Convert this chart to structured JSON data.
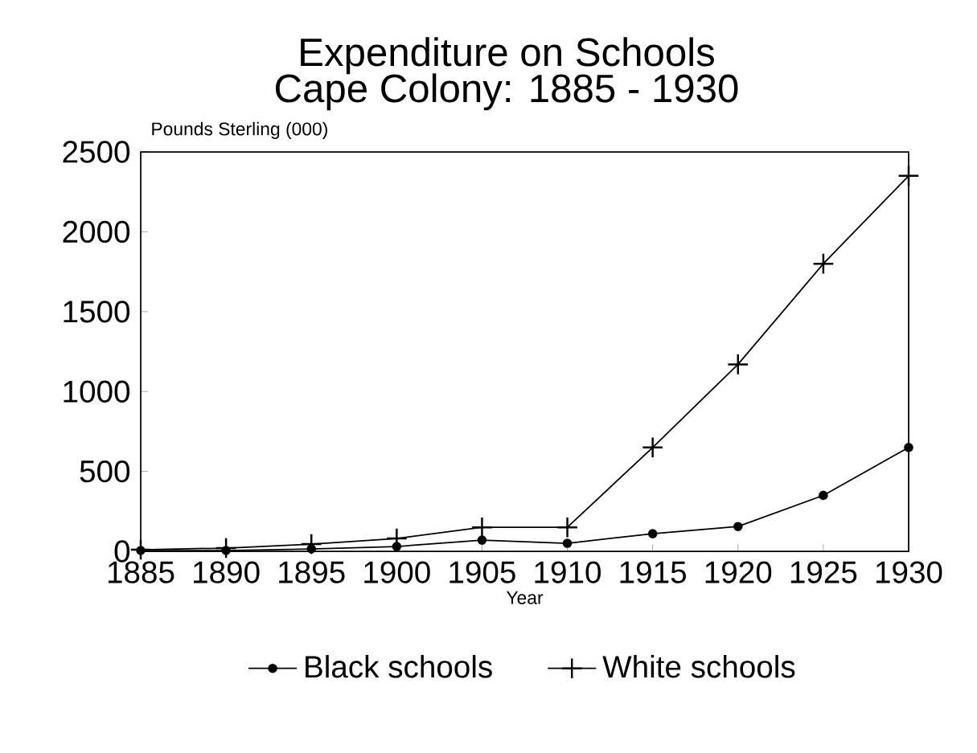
{
  "chart_data": {
    "type": "line",
    "title": "Expenditure on Schools",
    "subtitle": "Cape Colony: 1885 - 1930",
    "xlabel": "Year",
    "ylabel": "Pounds Sterling (000)",
    "x": [
      1885,
      1890,
      1895,
      1900,
      1905,
      1910,
      1915,
      1920,
      1925,
      1930
    ],
    "series": [
      {
        "name": "Black schools",
        "color": "#000000",
        "marker": "circle",
        "values": [
          5,
          5,
          15,
          30,
          70,
          50,
          110,
          155,
          350,
          650
        ]
      },
      {
        "name": "White schools",
        "color": "#000000",
        "marker": "cross",
        "values": [
          10,
          20,
          45,
          80,
          150,
          150,
          650,
          1170,
          1800,
          2350
        ]
      }
    ],
    "xlim": [
      1885,
      1930
    ],
    "ylim": [
      0,
      2500
    ],
    "xticks": [
      1885,
      1890,
      1895,
      1900,
      1905,
      1910,
      1915,
      1920,
      1925,
      1930
    ],
    "yticks": [
      0,
      500,
      1000,
      1500,
      2000,
      2500
    ],
    "grid": false,
    "legend": "bottom",
    "line_style": "solid"
  }
}
